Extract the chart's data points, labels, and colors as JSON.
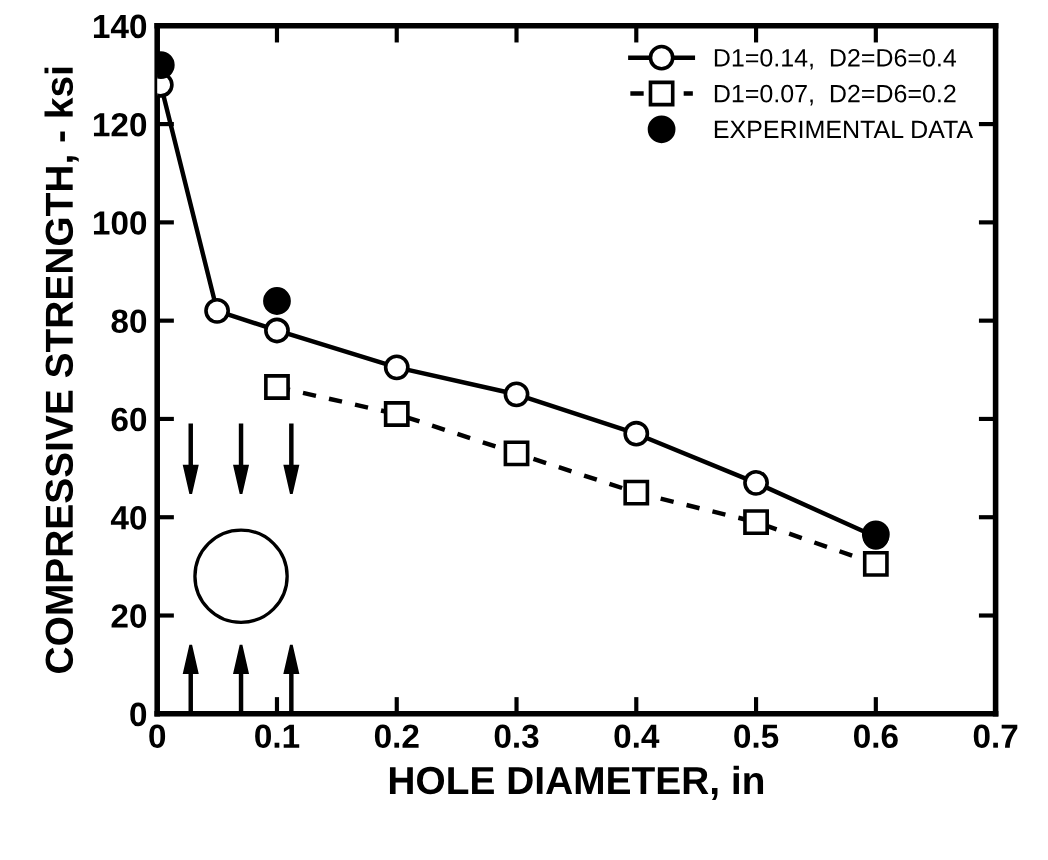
{
  "chart_data": {
    "type": "line",
    "xlabel": "HOLE DIAMETER, in",
    "ylabel": "COMPRESSIVE STRENGTH, - ksi",
    "xlim": [
      0,
      0.7
    ],
    "xticks": [
      0,
      0.1,
      0.2,
      0.3,
      0.4,
      0.5,
      0.6,
      0.7
    ],
    "ylim": [
      0,
      140
    ],
    "yticks": [
      0,
      20,
      40,
      60,
      80,
      100,
      120,
      140
    ],
    "grid": false,
    "legend": "top right",
    "series": [
      {
        "name": "D1=0.14,  D2=D6=0.4",
        "color": "#000000",
        "marker": "circle",
        "line_style": "solid",
        "x": [
          0.003,
          0.05,
          0.1,
          0.2,
          0.3,
          0.4,
          0.5,
          0.6
        ],
        "values": [
          128,
          82,
          78,
          70.5,
          65,
          57,
          47,
          36
        ]
      },
      {
        "name": "D1=0.07,  D2=D6=0.2",
        "color": "#000000",
        "marker": "square",
        "line_style": "dashed",
        "x": [
          0.1,
          0.2,
          0.3,
          0.4,
          0.5,
          0.6
        ],
        "values": [
          66.5,
          61,
          53,
          45,
          39,
          30.5
        ]
      },
      {
        "name": "EXPERIMENTAL DATA",
        "type": "scatter",
        "color": "#000000",
        "marker": "circle",
        "x": [
          0.003,
          0.1,
          0.6
        ],
        "values": [
          132,
          84,
          36.5
        ]
      }
    ]
  }
}
